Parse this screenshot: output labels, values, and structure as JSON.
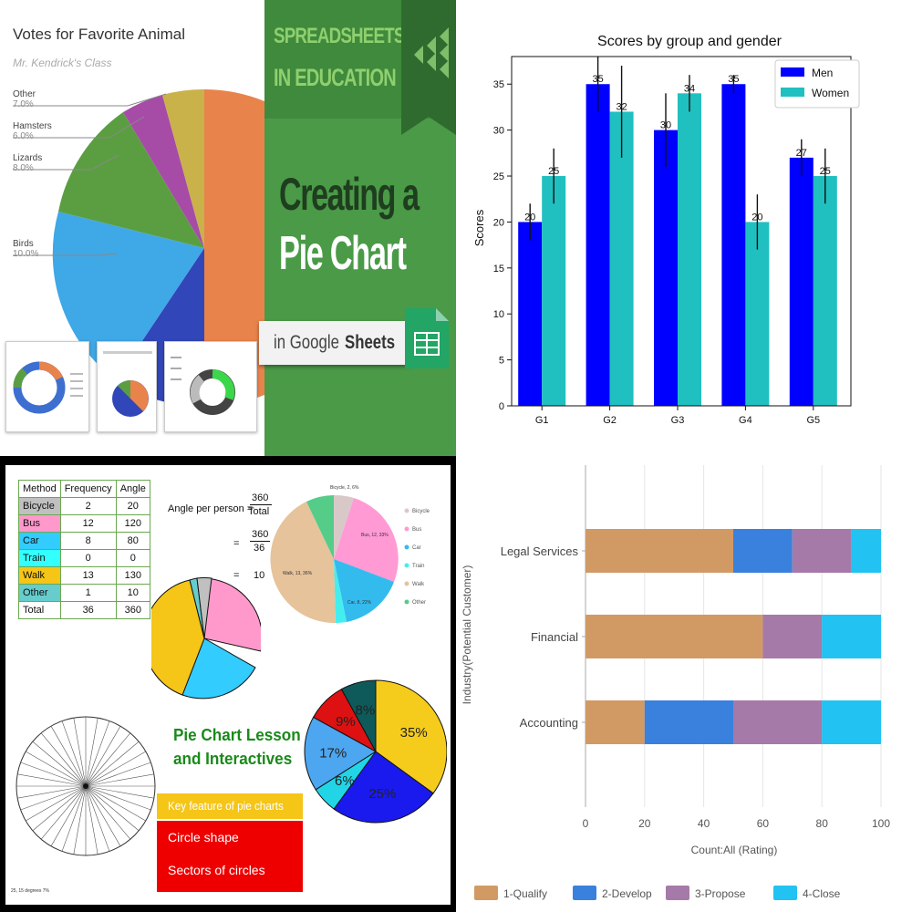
{
  "tl": {
    "title": "Votes for Favorite Animal",
    "subtitle": "Mr. Kendrick's Class",
    "callouts": [
      {
        "label": "Other",
        "value": "7.0%"
      },
      {
        "label": "Hamsters",
        "value": "6.0%"
      },
      {
        "label": "Lizards",
        "value": "8.0%"
      },
      {
        "label": "Birds",
        "value": "10.0%"
      }
    ],
    "banner": {
      "line1": "SPREADSHEETS",
      "line2": "IN EDUCATION",
      "heading1": "Creating a",
      "heading2": "Pie Chart",
      "tag_prefix": "in Google ",
      "tag_bold": "Sheets"
    },
    "colors": {
      "green": "#4a9a47",
      "dark_green": "#2f6b2f",
      "orange": "#e8834b",
      "navy": "#3146b8",
      "blue": "#3fa8e6",
      "green_slice": "#5b9e42",
      "purple": "#a64ca6",
      "olive": "#c9b24a"
    }
  },
  "chart_data": [
    {
      "type": "pie",
      "title": "Votes for Favorite Animal",
      "subtitle": "Mr. Kendrick's Class",
      "slices": [
        {
          "label": "Other",
          "value": 7.0
        },
        {
          "label": "Hamsters",
          "value": 6.0
        },
        {
          "label": "Lizards",
          "value": 8.0
        },
        {
          "label": "Birds",
          "value": 10.0
        }
      ]
    },
    {
      "type": "bar",
      "title": "Scores by group and gender",
      "xlabel": "",
      "ylabel": "Scores",
      "categories": [
        "G1",
        "G2",
        "G3",
        "G4",
        "G5"
      ],
      "series": [
        {
          "name": "Men",
          "values": [
            20,
            35,
            30,
            35,
            27
          ],
          "errors": [
            2,
            3,
            4,
            1,
            2
          ],
          "color": "#0000ff"
        },
        {
          "name": "Women",
          "values": [
            25,
            32,
            34,
            20,
            25
          ],
          "errors": [
            3,
            5,
            2,
            3,
            3
          ],
          "color": "#20c0c0"
        }
      ],
      "ylim": [
        0,
        38
      ],
      "yticks": [
        0,
        5,
        10,
        15,
        20,
        25,
        30,
        35
      ],
      "legend": "top-right"
    },
    {
      "type": "table",
      "columns": [
        "Method",
        "Frequency",
        "Angle"
      ],
      "rows": [
        [
          "Bicycle",
          "2",
          "20"
        ],
        [
          "Bus",
          "12",
          "120"
        ],
        [
          "Car",
          "8",
          "80"
        ],
        [
          "Train",
          "0",
          "0"
        ],
        [
          "Walk",
          "13",
          "130"
        ],
        [
          "Other",
          "1",
          "10"
        ],
        [
          "Total",
          "36",
          "360"
        ]
      ],
      "row_colors": [
        "#c0c0c0",
        "#ff99cc",
        "#33ccff",
        "#33ffff",
        "#f5c518",
        "#66cccc",
        "#ffffff"
      ]
    },
    {
      "type": "pie",
      "slices": [
        {
          "label": "35%",
          "value": 35,
          "color": "#f5cc1c"
        },
        {
          "label": "25%",
          "value": 25,
          "color": "#1a1aee"
        },
        {
          "label": "6%",
          "value": 6,
          "color": "#22d5e6"
        },
        {
          "label": "17%",
          "value": 17,
          "color": "#4da6f0"
        },
        {
          "label": "9%",
          "value": 9,
          "color": "#dd1111"
        },
        {
          "label": "8%",
          "value": 8,
          "color": "#0e5a5a"
        }
      ]
    },
    {
      "type": "bar",
      "orientation": "horizontal",
      "stacked": true,
      "xlabel": "Count:All (Rating)",
      "ylabel": "Industry(Potential Customer)",
      "categories": [
        "Legal Services",
        "Financial",
        "Accounting"
      ],
      "series": [
        {
          "name": "1-Qualify",
          "values": [
            50,
            60,
            20
          ],
          "color": "#d19a64"
        },
        {
          "name": "2-Develop",
          "values": [
            20,
            0,
            30
          ],
          "color": "#3a80dd"
        },
        {
          "name": "3-Propose",
          "values": [
            20,
            20,
            30
          ],
          "color": "#a57aa8"
        },
        {
          "name": "4-Close",
          "values": [
            10,
            20,
            20
          ],
          "color": "#22c2f2"
        }
      ],
      "xlim": [
        0,
        100
      ],
      "xticks": [
        0,
        20,
        40,
        60,
        80,
        100
      ],
      "legend": "bottom"
    }
  ],
  "bl": {
    "formula_label": "Angle per person =",
    "formula_num": "360",
    "formula_den": "Total",
    "formula_eq1": "=",
    "formula_num2": "360",
    "formula_den2": "36",
    "formula_eq2": "=",
    "formula_result": "10",
    "lesson_line1": "Pie Chart Lesson",
    "lesson_line2": "and Interactives",
    "features": [
      "Key feature of pie charts",
      "Circle shape",
      "Sectors of circles"
    ],
    "small_pie_legend": [
      "Bicycle",
      "Bus",
      "Car",
      "Train",
      "Walk",
      "Other"
    ],
    "small_pie_labels": [
      "Bicycle, 2, 6%",
      "Bus, 12, 33%",
      "Car, 8, 22%",
      "Walk, 13, 36%"
    ],
    "footnote": "25, 15 degrees 7%",
    "small_pie_colors": [
      "#d9c8c8",
      "#ff9ad5",
      "#33bbee",
      "#44eeee",
      "#e6c39a",
      "#55cc88"
    ]
  }
}
